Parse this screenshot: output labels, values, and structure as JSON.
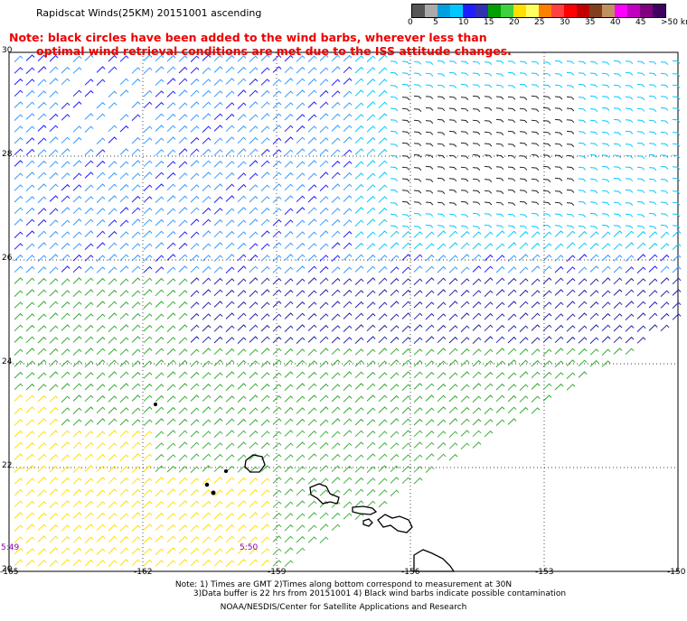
{
  "title": "Rapidscat Winds(25KM) 20151001 ascending",
  "legend": {
    "colors": [
      "#555555",
      "#aaaaaa",
      "#00a0e0",
      "#00c8ff",
      "#1e1eff",
      "#3030b0",
      "#00a000",
      "#40d040",
      "#ffe000",
      "#ffff60",
      "#ff8000",
      "#ff4040",
      "#ff0000",
      "#c00000",
      "#804020",
      "#c09060",
      "#ff00ff",
      "#c000c0",
      "#800080",
      "#400060"
    ],
    "labels": [
      "0",
      "5",
      "10",
      "15",
      "20",
      "25",
      "30",
      "35",
      "40",
      "45",
      ">50 knots"
    ]
  },
  "note_red": {
    "line1": "Note: black circles have been added to the wind barbs, wherever less than",
    "line2": "optimal wind retrieval conditions are met due to the ISS attitude changes."
  },
  "map": {
    "lat_labels": [
      "30",
      "28",
      "26",
      "24",
      "22",
      "20"
    ],
    "lon_labels": [
      "-165",
      "-162",
      "-159",
      "-156",
      "-153",
      "-150"
    ],
    "time_labels": [
      "5:49",
      "5:50"
    ]
  },
  "footer": {
    "line1": "Note: 1) Times are GMT 2)Times along bottom correspond to measurement at 30N",
    "line2": "3)Data buffer is 22 hrs from 20151001 4) Black wind barbs indicate possible contamination",
    "line3": "NOAA/NESDIS/Center for Satellite Applications and Research"
  }
}
